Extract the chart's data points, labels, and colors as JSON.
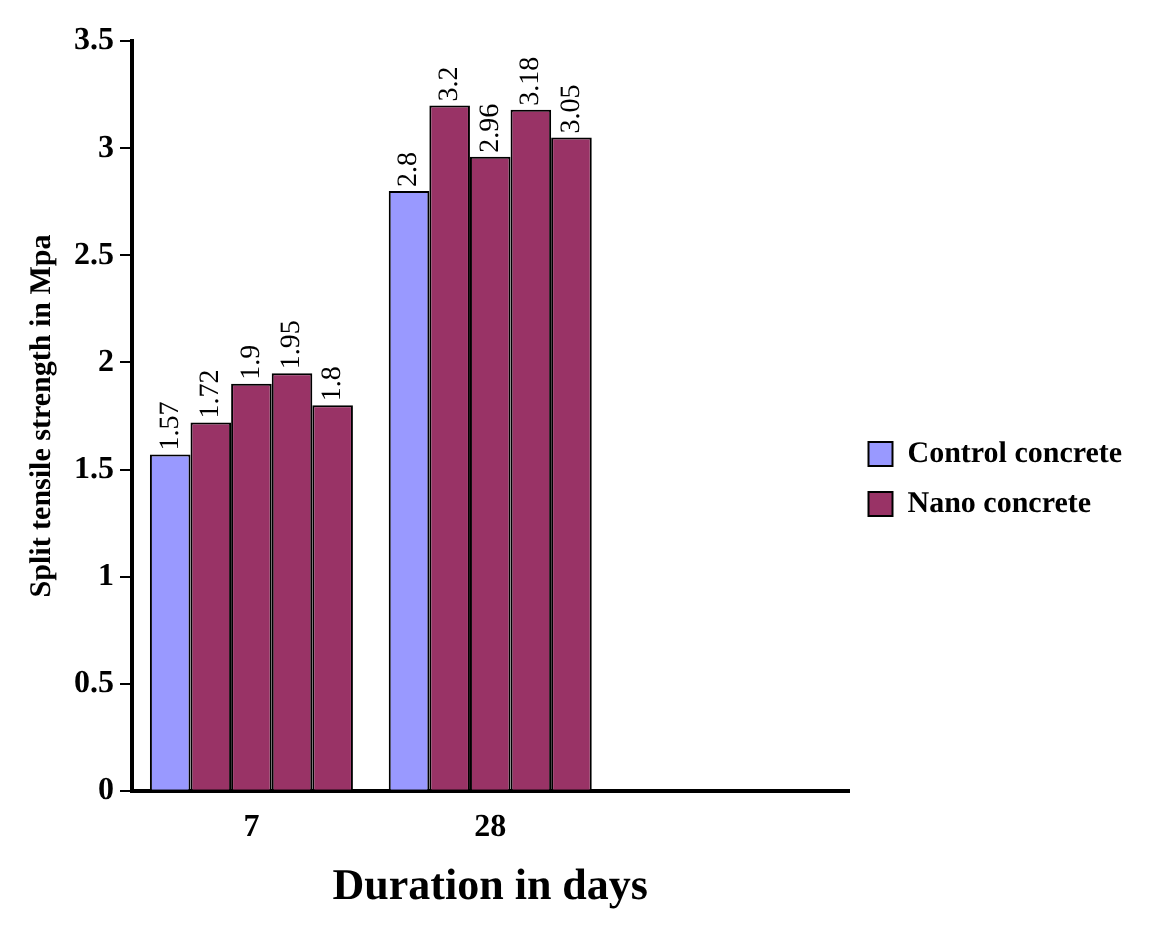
{
  "chart_data": {
    "type": "bar",
    "xlabel": "Duration in days",
    "ylabel": "Split tensile strength in Mpa",
    "categories": [
      "7",
      "28",
      null
    ],
    "series": [
      {
        "name": "Control concrete",
        "color": "#9999ff",
        "values": [
          1.57,
          2.8,
          null
        ]
      },
      {
        "name": "Nano concrete",
        "color": "#993366",
        "values": [
          1.72,
          3.2,
          null
        ]
      },
      {
        "color": "#993366",
        "values": [
          1.9,
          2.96,
          null
        ]
      },
      {
        "color": "#993366",
        "values": [
          1.95,
          3.18,
          null
        ]
      },
      {
        "color": "#993366",
        "values": [
          1.8,
          3.05,
          null
        ]
      }
    ],
    "ylim": [
      0,
      3.5
    ],
    "yticks": [
      0,
      0.5,
      1,
      1.5,
      2,
      2.5,
      3,
      3.5
    ],
    "grid": false,
    "legend": "right",
    "data_labels": true
  }
}
